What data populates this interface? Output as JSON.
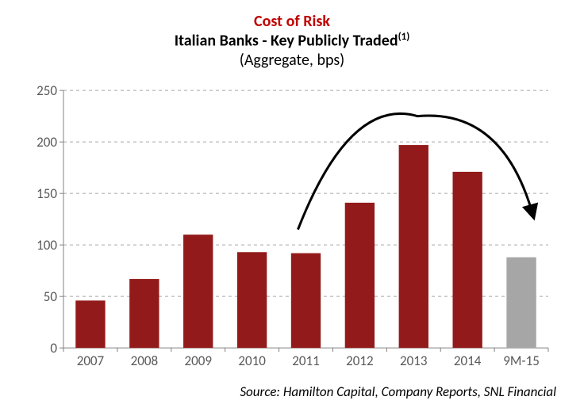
{
  "chart": {
    "type": "bar",
    "title_line1": "Cost of Risk",
    "title_line1_color": "#c00000",
    "title_line2": "Italian Banks - Key Publicly Traded",
    "title_line2_sup": "(1)",
    "title_line3": "(Aggregate, bps)",
    "title_fontsize": 20,
    "categories": [
      "2007",
      "2008",
      "2009",
      "2010",
      "2011",
      "2012",
      "2013",
      "2014",
      "9M-15"
    ],
    "values": [
      46,
      67,
      110,
      93,
      92,
      141,
      197,
      171,
      88
    ],
    "bar_colors": [
      "#931a1a",
      "#931a1a",
      "#931a1a",
      "#931a1a",
      "#931a1a",
      "#931a1a",
      "#931a1a",
      "#931a1a",
      "#a6a6a6"
    ],
    "ylim": [
      0,
      250
    ],
    "ytick_step": 50,
    "yticks": [
      0,
      50,
      100,
      150,
      200,
      250
    ],
    "grid_color": "#a6a6a6",
    "grid_dash": "4,4",
    "axis_color": "#808080",
    "background_color": "#ffffff",
    "label_color": "#595959",
    "label_fontsize": 17,
    "bar_width_ratio": 0.55,
    "arrow_color": "#000000",
    "arrow_stroke_width": 3,
    "source": "Source: Hamilton Capital, Company Reports, SNL Financial",
    "source_fontsize": 17
  }
}
